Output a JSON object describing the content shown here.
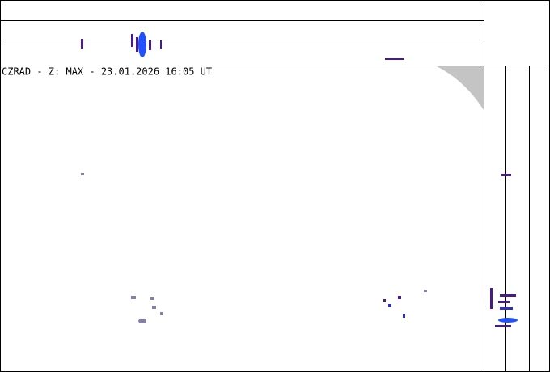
{
  "header": {
    "title": "CZRAD - Z: MAX - 23.01.2026 16:05 UT"
  }
}
